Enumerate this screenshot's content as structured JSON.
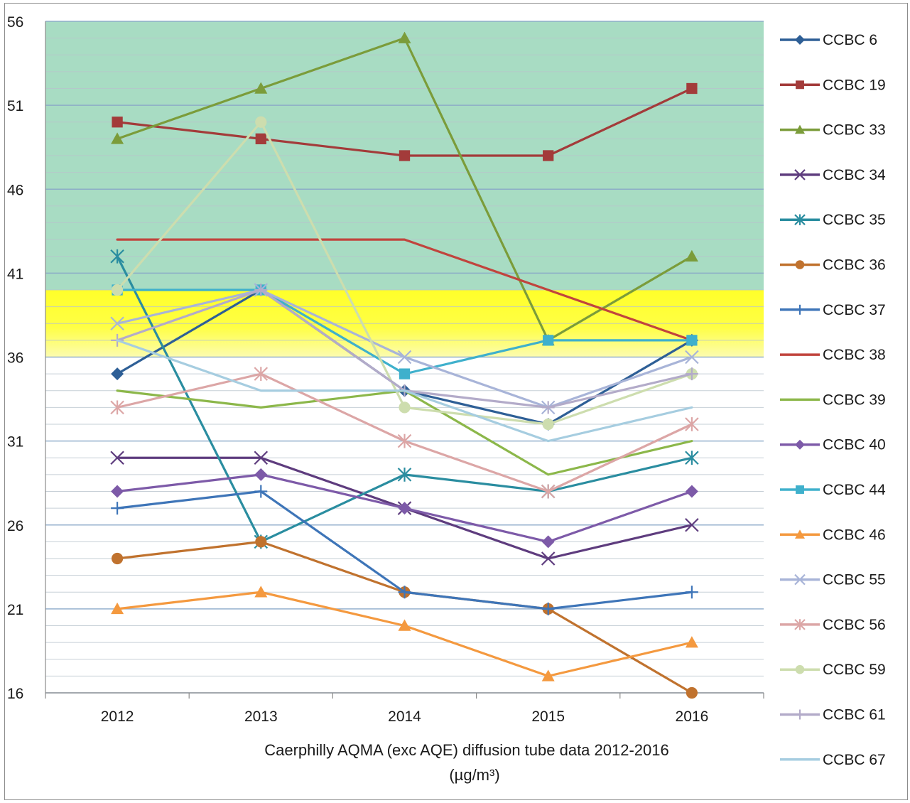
{
  "chart_data": {
    "type": "line",
    "title": "Caerphilly  AQMA (exc  AQE) diffusion tube data 2012-2016",
    "subtitle": "(µg/m³)",
    "xlabel": "",
    "ylabel": "",
    "categories": [
      "2012",
      "2013",
      "2014",
      "2015",
      "2016"
    ],
    "ylim": [
      16,
      56
    ],
    "yticks": [
      16,
      21,
      26,
      31,
      36,
      41,
      46,
      51,
      56
    ],
    "grid": true,
    "legend_position": "right",
    "background_bands": [
      {
        "from": 40,
        "to": 56,
        "color": "#a8dcc3"
      },
      {
        "from": 36,
        "to": 40,
        "color": "#ffff33"
      }
    ],
    "series": [
      {
        "name": "CCBC  6",
        "color": "#2e5f96",
        "marker": "diamond",
        "values": [
          35,
          40,
          34,
          32,
          37
        ]
      },
      {
        "name": "CCBC 19",
        "color": "#a33b3a",
        "marker": "square",
        "values": [
          50,
          49,
          48,
          48,
          52
        ]
      },
      {
        "name": "CCBC 33",
        "color": "#7b9c3a",
        "marker": "triangle",
        "values": [
          49,
          52,
          55,
          37,
          42
        ]
      },
      {
        "name": "CCBC 34",
        "color": "#5e3c7e",
        "marker": "x",
        "values": [
          30,
          30,
          27,
          24,
          26
        ]
      },
      {
        "name": "CCBC 35",
        "color": "#2a8da0",
        "marker": "star",
        "values": [
          42,
          25,
          29,
          28,
          30
        ]
      },
      {
        "name": "CCBC 36",
        "color": "#c0722e",
        "marker": "circle",
        "values": [
          24,
          25,
          22,
          21,
          16
        ]
      },
      {
        "name": "CCBC 37",
        "color": "#3e75b8",
        "marker": "plus",
        "values": [
          27,
          28,
          22,
          21,
          22
        ]
      },
      {
        "name": "CCBC 38",
        "color": "#c1443d",
        "marker": "none",
        "values": [
          43,
          43,
          43,
          40,
          37
        ]
      },
      {
        "name": "CCBC 39",
        "color": "#8cb74a",
        "marker": "none",
        "values": [
          34,
          33,
          34,
          29,
          31
        ]
      },
      {
        "name": "CCBC 40",
        "color": "#7d5aa8",
        "marker": "diamond",
        "values": [
          28,
          29,
          27,
          25,
          28
        ]
      },
      {
        "name": "CCBC 44",
        "color": "#3fb0cc",
        "marker": "square",
        "values": [
          40,
          40,
          35,
          37,
          37
        ]
      },
      {
        "name": "CCBC 46",
        "color": "#f4993f",
        "marker": "triangle",
        "values": [
          21,
          22,
          20,
          17,
          19
        ]
      },
      {
        "name": "CCBC 55",
        "color": "#a8b4d8",
        "marker": "x",
        "values": [
          38,
          40,
          36,
          33,
          36
        ]
      },
      {
        "name": "CCBC 56",
        "color": "#dca6a6",
        "marker": "star",
        "values": [
          33,
          35,
          31,
          28,
          32
        ]
      },
      {
        "name": "CCBC 59",
        "color": "#cdddae",
        "marker": "circle",
        "values": [
          40,
          50,
          33,
          32,
          35
        ]
      },
      {
        "name": "CCBC 61",
        "color": "#b3abc9",
        "marker": "plus",
        "values": [
          37,
          40,
          34,
          33,
          35
        ]
      },
      {
        "name": "CCBC 67",
        "color": "#a6cde0",
        "marker": "none",
        "values": [
          37,
          34,
          34,
          31,
          33
        ]
      }
    ]
  }
}
